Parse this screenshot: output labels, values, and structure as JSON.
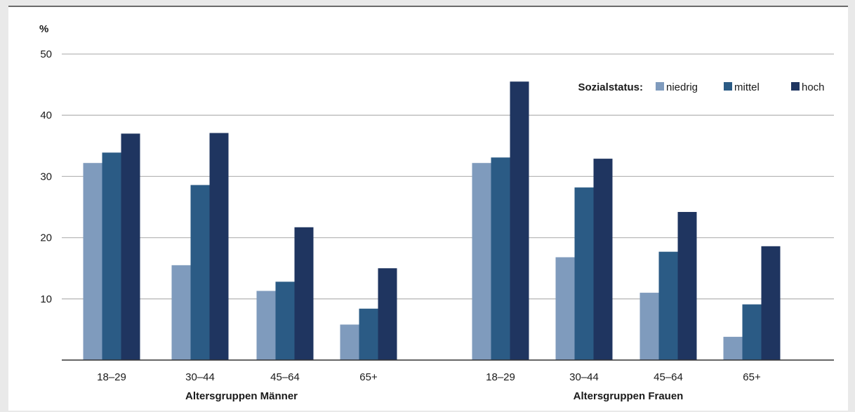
{
  "chart_data": {
    "type": "bar",
    "unit": "%",
    "ylim": [
      0,
      50
    ],
    "yticks": [
      10,
      20,
      30,
      40,
      50
    ],
    "grid": true,
    "legend": {
      "title": "Sozialstatus:",
      "placement": "top-right",
      "entries": [
        "niedrig",
        "mittel",
        "hoch"
      ]
    },
    "groups": [
      {
        "label": "Altersgruppen Männer",
        "categories": [
          "18–29",
          "30–44",
          "45–64",
          "65+"
        ]
      },
      {
        "label": "Altersgruppen Frauen",
        "categories": [
          "18–29",
          "30–44",
          "45–64",
          "65+"
        ]
      }
    ],
    "series": [
      {
        "name": "niedrig",
        "color": "#7f9bbd",
        "values": [
          32.2,
          15.5,
          11.3,
          5.8,
          32.2,
          16.8,
          11.0,
          3.8
        ]
      },
      {
        "name": "mittel",
        "color": "#2b5b85",
        "values": [
          33.9,
          28.6,
          12.8,
          8.4,
          33.1,
          28.2,
          17.7,
          9.1
        ]
      },
      {
        "name": "hoch",
        "color": "#1f3560",
        "values": [
          37.0,
          37.1,
          21.7,
          15.0,
          45.5,
          32.9,
          24.2,
          18.6
        ]
      }
    ]
  }
}
